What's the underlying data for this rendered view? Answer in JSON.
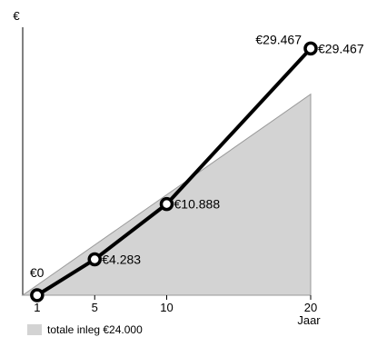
{
  "chart_data": {
    "type": "line",
    "y_axis_label": "€",
    "x_axis_label": "Jaar",
    "x_ticks": [
      1,
      5,
      10,
      20
    ],
    "x_range": [
      0,
      20
    ],
    "y_range": [
      0,
      32000
    ],
    "series": [
      {
        "values": [
          0,
          4283,
          10888,
          29467
        ],
        "x": [
          1,
          5,
          10,
          20
        ],
        "point_labels": [
          "€0",
          "€4.283",
          "€10.888",
          "€29.467"
        ],
        "label_left": "€29.467",
        "color": "#000000"
      }
    ],
    "area": {
      "name": "totale inleg €24.000",
      "x": [
        0,
        20
      ],
      "values": [
        0,
        24000
      ],
      "color": "#d3d3d3"
    }
  }
}
